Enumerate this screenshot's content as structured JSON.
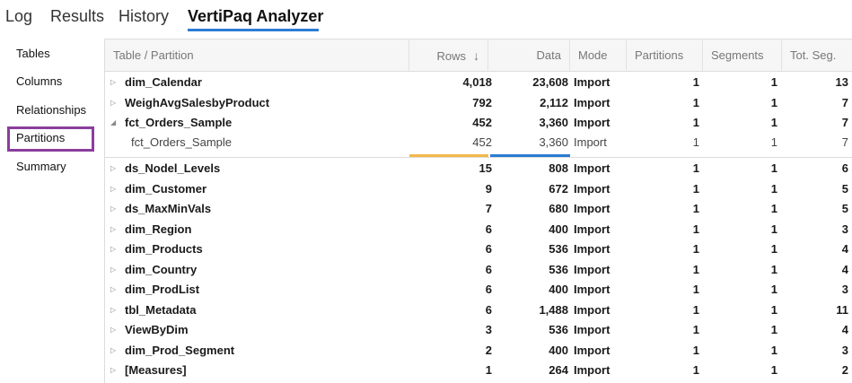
{
  "tabs": [
    {
      "label": "Log",
      "active": false
    },
    {
      "label": "Results",
      "active": false
    },
    {
      "label": "History",
      "active": false
    },
    {
      "label": "VertiPaq Analyzer",
      "active": true
    }
  ],
  "sidenav": {
    "items": [
      "Tables",
      "Columns",
      "Relationships",
      "Partitions",
      "Summary"
    ],
    "selected": "Partitions"
  },
  "grid": {
    "columns": [
      "Table / Partition",
      "Rows",
      "Data",
      "Mode",
      "Partitions",
      "Segments",
      "Tot. Seg."
    ],
    "sort_column": "Rows",
    "sort_direction": "descending",
    "rows": [
      {
        "name": "dim_Calendar",
        "rows": "4,018",
        "data": "23,608",
        "mode": "Import",
        "partitions": "1",
        "segments": "1",
        "tot_seg": "13",
        "expanded": false
      },
      {
        "name": "WeighAvgSalesbyProduct",
        "rows": "792",
        "data": "2,112",
        "mode": "Import",
        "partitions": "1",
        "segments": "1",
        "tot_seg": "7",
        "expanded": false
      },
      {
        "name": "fct_Orders_Sample",
        "rows": "452",
        "data": "3,360",
        "mode": "Import",
        "partitions": "1",
        "segments": "1",
        "tot_seg": "7",
        "expanded": true
      },
      {
        "name": "fct_Orders_Sample",
        "rows": "452",
        "data": "3,360",
        "mode": "Import",
        "partitions": "1",
        "segments": "1",
        "tot_seg": "7",
        "child": true
      },
      {
        "name": "ds_Nodel_Levels",
        "rows": "15",
        "data": "808",
        "mode": "Import",
        "partitions": "1",
        "segments": "1",
        "tot_seg": "6",
        "expanded": false
      },
      {
        "name": "dim_Customer",
        "rows": "9",
        "data": "672",
        "mode": "Import",
        "partitions": "1",
        "segments": "1",
        "tot_seg": "5",
        "expanded": false
      },
      {
        "name": "ds_MaxMinVals",
        "rows": "7",
        "data": "680",
        "mode": "Import",
        "partitions": "1",
        "segments": "1",
        "tot_seg": "5",
        "expanded": false
      },
      {
        "name": "dim_Region",
        "rows": "6",
        "data": "400",
        "mode": "Import",
        "partitions": "1",
        "segments": "1",
        "tot_seg": "3",
        "expanded": false
      },
      {
        "name": "dim_Products",
        "rows": "6",
        "data": "536",
        "mode": "Import",
        "partitions": "1",
        "segments": "1",
        "tot_seg": "4",
        "expanded": false
      },
      {
        "name": "dim_Country",
        "rows": "6",
        "data": "536",
        "mode": "Import",
        "partitions": "1",
        "segments": "1",
        "tot_seg": "4",
        "expanded": false
      },
      {
        "name": "dim_ProdList",
        "rows": "6",
        "data": "400",
        "mode": "Import",
        "partitions": "1",
        "segments": "1",
        "tot_seg": "3",
        "expanded": false
      },
      {
        "name": "tbl_Metadata",
        "rows": "6",
        "data": "1,488",
        "mode": "Import",
        "partitions": "1",
        "segments": "1",
        "tot_seg": "11",
        "expanded": false
      },
      {
        "name": "ViewByDim",
        "rows": "3",
        "data": "536",
        "mode": "Import",
        "partitions": "1",
        "segments": "1",
        "tot_seg": "4",
        "expanded": false
      },
      {
        "name": "dim_Prod_Segment",
        "rows": "2",
        "data": "400",
        "mode": "Import",
        "partitions": "1",
        "segments": "1",
        "tot_seg": "3",
        "expanded": false
      },
      {
        "name": "[Measures]",
        "rows": "1",
        "data": "264",
        "mode": "Import",
        "partitions": "1",
        "segments": "1",
        "tot_seg": "2",
        "expanded": false
      }
    ]
  },
  "colors": {
    "accent_blue": "#2b7cd3",
    "rows_bar_orange": "#f2b84b",
    "selection_purple": "#8a3e9c"
  }
}
